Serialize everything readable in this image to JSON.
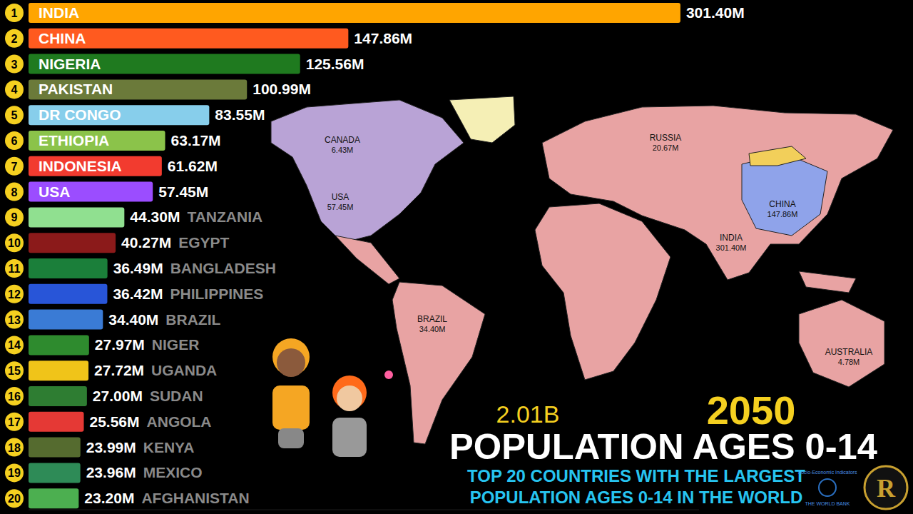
{
  "chart_data": {
    "type": "bar",
    "orientation": "horizontal",
    "title": "POPULATION AGES 0-14",
    "subtitle": "TOP 20 COUNTRIES WITH THE LARGEST POPULATION AGES 0-14 IN THE WORLD",
    "categories": [
      "INDIA",
      "CHINA",
      "NIGERIA",
      "PAKISTAN",
      "DR CONGO",
      "ETHIOPIA",
      "INDONESIA",
      "USA",
      "TANZANIA",
      "EGYPT",
      "BANGLADESH",
      "PHILIPPINES",
      "BRAZIL",
      "NIGER",
      "UGANDA",
      "SUDAN",
      "ANGOLA",
      "KENYA",
      "MEXICO",
      "AFGHANISTAN"
    ],
    "ranks": [
      1,
      2,
      3,
      4,
      5,
      6,
      7,
      8,
      9,
      10,
      11,
      12,
      13,
      14,
      15,
      16,
      17,
      18,
      19,
      20
    ],
    "values": [
      301.4,
      147.86,
      125.56,
      100.99,
      83.55,
      63.17,
      61.62,
      57.45,
      44.3,
      40.27,
      36.49,
      36.42,
      34.4,
      27.97,
      27.72,
      27.0,
      25.56,
      23.99,
      23.96,
      23.2
    ],
    "value_labels": [
      "301.40M",
      "147.86M",
      "125.56M",
      "100.99M",
      "83.55M",
      "63.17M",
      "61.62M",
      "57.45M",
      "44.30M",
      "40.27M",
      "36.49M",
      "36.42M",
      "34.40M",
      "27.97M",
      "27.72M",
      "27.00M",
      "25.56M",
      "23.99M",
      "23.96M",
      "23.20M"
    ],
    "colors": [
      "#ffa500",
      "#ff5a1f",
      "#1f7a1f",
      "#6b7a3a",
      "#87ceeb",
      "#8bc34a",
      "#f23b2f",
      "#9b4dff",
      "#90e090",
      "#8b1a1a",
      "#1b7f3a",
      "#2855d8",
      "#3a7bd5",
      "#2e8b2e",
      "#f0c419",
      "#2e7d32",
      "#e53935",
      "#556b2f",
      "#2e8b57",
      "#4caf50"
    ],
    "xlim": [
      0,
      310
    ],
    "data_labels": true,
    "tick_labels": false
  },
  "overlay": {
    "year": "2050",
    "total": "2.01B",
    "source": [
      "Socio-Economic Indicators",
      "THE WORLD BANK"
    ],
    "logo": "R"
  },
  "map": {
    "labels": [
      {
        "name": "CANADA",
        "value": "6.43M"
      },
      {
        "name": "USA",
        "value": "57.45M"
      },
      {
        "name": "RUSSIA",
        "value": "20.67M"
      },
      {
        "name": "CHINA",
        "value": "147.86M"
      },
      {
        "name": "INDIA",
        "value": "301.40M"
      },
      {
        "name": "BRAZIL",
        "value": "34.40M"
      },
      {
        "name": "AUSTRALIA",
        "value": "4.78M"
      }
    ]
  }
}
